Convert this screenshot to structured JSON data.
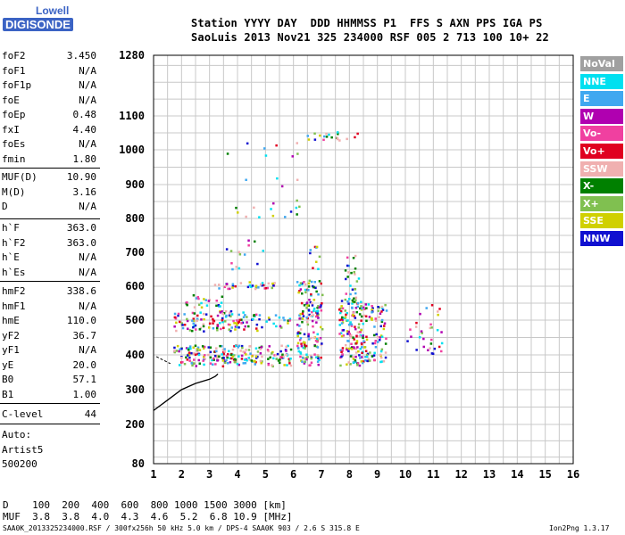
{
  "logo": {
    "line1": "Lowell",
    "line2": "DIGISONDE"
  },
  "header": {
    "row1": "Station YYYY DAY  DDD HHMMSS P1  FFS S AXN PPS IGA PS",
    "row2": "SaoLuis 2013 Nov21 325 234000 RSF 005 2 713 100 10+ 22"
  },
  "params": {
    "group1": [
      {
        "label": "foF2",
        "value": "3.450"
      },
      {
        "label": "foF1",
        "value": "N/A"
      },
      {
        "label": "foF1p",
        "value": "N/A"
      },
      {
        "label": "foE",
        "value": "N/A"
      },
      {
        "label": "foEp",
        "value": "0.48"
      },
      {
        "label": "fxI",
        "value": "4.40"
      },
      {
        "label": "foEs",
        "value": "N/A"
      },
      {
        "label": "fmin",
        "value": "1.80"
      }
    ],
    "group2": [
      {
        "label": "MUF(D)",
        "value": "10.90"
      },
      {
        "label": "M(D)",
        "value": "3.16"
      },
      {
        "label": "D",
        "value": "N/A"
      }
    ],
    "group3": [
      {
        "label": "h`F",
        "value": "363.0"
      },
      {
        "label": "h`F2",
        "value": "363.0"
      },
      {
        "label": "h`E",
        "value": "N/A"
      },
      {
        "label": "h`Es",
        "value": "N/A"
      }
    ],
    "group4": [
      {
        "label": "hmF2",
        "value": "338.6"
      },
      {
        "label": "hmF1",
        "value": "N/A"
      },
      {
        "label": "hmE",
        "value": "110.0"
      },
      {
        "label": "yF2",
        "value": "36.7"
      },
      {
        "label": "yF1",
        "value": "N/A"
      },
      {
        "label": "yE",
        "value": "20.0"
      },
      {
        "label": "B0",
        "value": "57.1"
      },
      {
        "label": "B1",
        "value": "1.00"
      }
    ],
    "c_level": {
      "label": "C-level",
      "value": "44"
    },
    "auto": [
      "Auto:",
      "Artist5",
      "500200"
    ]
  },
  "muf_table": {
    "row_d": "D    100  200  400  600  800 1000 1500 3000 [km]",
    "row_muf": "MUF  3.8  3.8  4.0  4.3  4.6  5.2  6.8 10.9 [MHz]"
  },
  "footer": {
    "left": "SAA0K_2013325234000.RSF / 300fx256h 50 kHz 5.0 km / DPS-4 SAA0K 903 / 2.6 S 315.8 E",
    "right": "Ion2Png 1.3.17"
  },
  "legend": [
    {
      "label": "NoVal",
      "color": "#a0a0a0"
    },
    {
      "label": "NNE",
      "color": "#00e0f0"
    },
    {
      "label": "E",
      "color": "#40a8f0"
    },
    {
      "label": "W",
      "color": "#b000b0"
    },
    {
      "label": "Vo-",
      "color": "#f040a0"
    },
    {
      "label": "Vo+",
      "color": "#e00020"
    },
    {
      "label": "SSW",
      "color": "#f0b0b0"
    },
    {
      "label": "X-",
      "color": "#008000"
    },
    {
      "label": "X+",
      "color": "#80c050"
    },
    {
      "label": "SSE",
      "color": "#d0d000"
    },
    {
      "label": "NNW",
      "color": "#1010d0"
    }
  ],
  "chart_data": {
    "type": "scatter",
    "xlim": [
      1,
      16
    ],
    "x_ticks": [
      1,
      2,
      3,
      4,
      5,
      6,
      7,
      8,
      9,
      10,
      11,
      12,
      13,
      14,
      15,
      16
    ],
    "y_ticks": [
      80,
      200,
      300,
      400,
      500,
      600,
      700,
      800,
      900,
      1000,
      1100,
      1280
    ],
    "ylim": [
      80,
      1280
    ],
    "grid": true,
    "trace_profile": {
      "x": [
        1.0,
        1.5,
        2.0,
        2.5,
        3.0,
        3.2,
        3.3
      ],
      "y": [
        240,
        270,
        300,
        318,
        330,
        338,
        345
      ]
    },
    "echo_blocks": [
      {
        "x0": 1.7,
        "x1": 3.9,
        "y0": 370,
        "y1": 430,
        "density": 0.7
      },
      {
        "x0": 1.7,
        "x1": 3.9,
        "y0": 470,
        "y1": 530,
        "density": 0.5
      },
      {
        "x0": 3.9,
        "x1": 4.9,
        "y0": 370,
        "y1": 430,
        "density": 0.6
      },
      {
        "x0": 3.9,
        "x1": 4.9,
        "y0": 470,
        "y1": 530,
        "density": 0.4
      },
      {
        "x0": 5.0,
        "x1": 5.9,
        "y0": 370,
        "y1": 430,
        "density": 0.6
      },
      {
        "x0": 5.0,
        "x1": 5.9,
        "y0": 480,
        "y1": 520,
        "density": 0.35
      },
      {
        "x0": 6.1,
        "x1": 7.0,
        "y0": 370,
        "y1": 620,
        "density": 0.55
      },
      {
        "x0": 6.5,
        "x1": 6.9,
        "y0": 650,
        "y1": 720,
        "density": 0.25
      },
      {
        "x0": 7.6,
        "x1": 8.5,
        "y0": 370,
        "y1": 560,
        "density": 0.65
      },
      {
        "x0": 7.8,
        "x1": 8.3,
        "y0": 560,
        "y1": 700,
        "density": 0.3
      },
      {
        "x0": 8.5,
        "x1": 9.3,
        "y0": 380,
        "y1": 550,
        "density": 0.45
      },
      {
        "x0": 3.0,
        "x1": 5.3,
        "y0": 595,
        "y1": 615,
        "density": 0.6
      },
      {
        "x0": 2.0,
        "x1": 3.5,
        "y0": 540,
        "y1": 580,
        "density": 0.3
      },
      {
        "x0": 10.0,
        "x1": 11.3,
        "y0": 400,
        "y1": 550,
        "density": 0.12
      },
      {
        "x0": 3.5,
        "x1": 5.0,
        "y0": 650,
        "y1": 740,
        "density": 0.08
      },
      {
        "x0": 3.6,
        "x1": 6.2,
        "y0": 800,
        "y1": 1050,
        "density": 0.03
      },
      {
        "x0": 6.2,
        "x1": 8.3,
        "y0": 1030,
        "y1": 1055,
        "density": 0.3
      }
    ]
  }
}
